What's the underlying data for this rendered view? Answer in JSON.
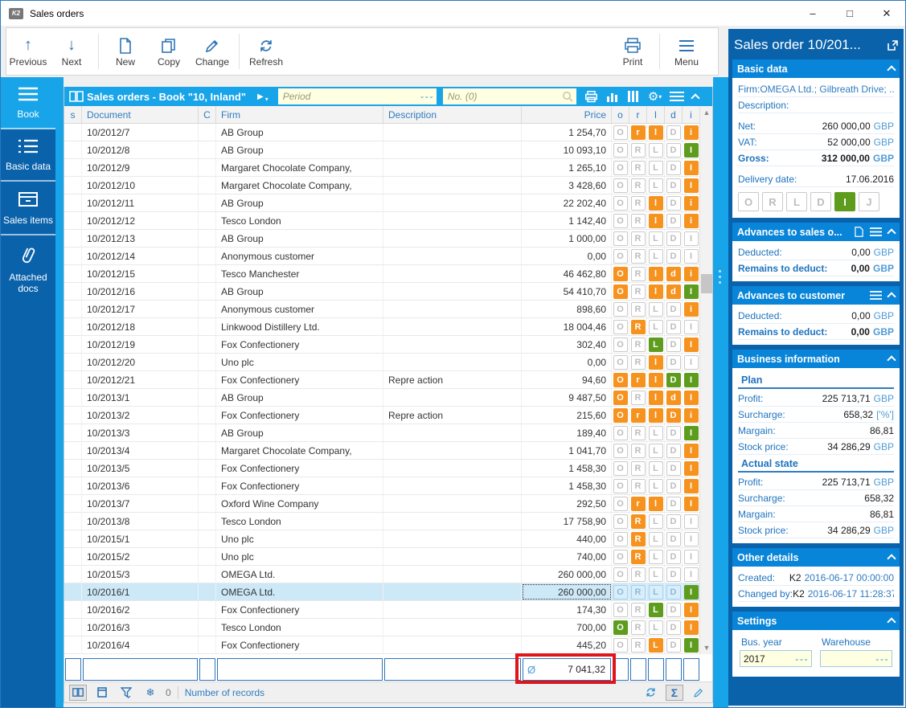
{
  "window": {
    "title": "Sales orders",
    "minimize": "–",
    "maximize": "□",
    "close": "✕"
  },
  "toolbar": {
    "left": [
      {
        "label": "Previous",
        "icon": "arrow-up"
      },
      {
        "label": "Next",
        "icon": "arrow-down"
      },
      {
        "label": "New",
        "icon": "new-document"
      },
      {
        "label": "Copy",
        "icon": "copy"
      },
      {
        "label": "Change",
        "icon": "pencil"
      },
      {
        "label": "Refresh",
        "icon": "refresh"
      }
    ],
    "groups_after": [
      1,
      4
    ],
    "right": [
      {
        "label": "Print",
        "icon": "printer"
      },
      {
        "label": "Menu",
        "icon": "hamburger"
      }
    ]
  },
  "sidebar": {
    "items": [
      {
        "label": "Book",
        "icon": "hamburger-icon",
        "active": true
      },
      {
        "label": "Basic data",
        "icon": "list-icon",
        "active": false
      },
      {
        "label": "Sales items",
        "icon": "box-icon",
        "active": false
      },
      {
        "label": "Attached docs",
        "icon": "paperclip-icon",
        "active": false
      }
    ]
  },
  "table": {
    "title": "Sales orders - Book \"10, Inland\"",
    "filters": {
      "period_placeholder": "Period",
      "no_placeholder": "No. (0)"
    },
    "columns": [
      "s",
      "Document",
      "C",
      "Firm",
      "Description",
      "Price",
      "o",
      "r",
      "l",
      "d",
      "i"
    ],
    "rows": [
      {
        "doc": "10/2012/7",
        "firm": "AB Group",
        "desc": "",
        "price": "1 254,70",
        "flags": [
          "O:g",
          "r:o",
          "l:o",
          "D:g",
          "i:o"
        ],
        "sel": false
      },
      {
        "doc": "10/2012/8",
        "firm": "AB Group",
        "desc": "",
        "price": "10 093,10",
        "flags": [
          "O:g",
          "R:g",
          "L:g",
          "D:g",
          "I:G"
        ],
        "sel": false
      },
      {
        "doc": "10/2012/9",
        "firm": "Margaret Chocolate Company,",
        "desc": "",
        "price": "1 265,10",
        "flags": [
          "O:g",
          "R:g",
          "L:g",
          "D:g",
          "I:o"
        ],
        "sel": false
      },
      {
        "doc": "10/2012/10",
        "firm": "Margaret Chocolate Company,",
        "desc": "",
        "price": "3 428,60",
        "flags": [
          "O:g",
          "R:g",
          "L:g",
          "D:g",
          "I:o"
        ],
        "sel": false
      },
      {
        "doc": "10/2012/11",
        "firm": "AB Group",
        "desc": "",
        "price": "22 202,40",
        "flags": [
          "O:g",
          "R:g",
          "l:o",
          "D:g",
          "i:o"
        ],
        "sel": false
      },
      {
        "doc": "10/2012/12",
        "firm": "Tesco London",
        "desc": "",
        "price": "1 142,40",
        "flags": [
          "O:g",
          "R:g",
          "l:o",
          "D:g",
          "i:o"
        ],
        "sel": false
      },
      {
        "doc": "10/2012/13",
        "firm": "AB Group",
        "desc": "",
        "price": "1 000,00",
        "flags": [
          "O:g",
          "R:g",
          "L:g",
          "D:g",
          "I:g"
        ],
        "sel": false
      },
      {
        "doc": "10/2012/14",
        "firm": "Anonymous customer",
        "desc": "",
        "price": "0,00",
        "flags": [
          "O:g",
          "R:g",
          "L:g",
          "D:g",
          "I:g"
        ],
        "sel": false
      },
      {
        "doc": "10/2012/15",
        "firm": "Tesco Manchester",
        "desc": "",
        "price": "46 462,80",
        "flags": [
          "O:o",
          "R:g",
          "l:o",
          "d:o",
          "i:o"
        ],
        "sel": false
      },
      {
        "doc": "10/2012/16",
        "firm": "AB Group",
        "desc": "",
        "price": "54 410,70",
        "flags": [
          "O:o",
          "R:g",
          "l:o",
          "d:o",
          "I:G"
        ],
        "sel": false
      },
      {
        "doc": "10/2012/17",
        "firm": "Anonymous customer",
        "desc": "",
        "price": "898,60",
        "flags": [
          "O:g",
          "R:g",
          "L:g",
          "D:g",
          "i:o"
        ],
        "sel": false
      },
      {
        "doc": "10/2012/18",
        "firm": "Linkwood Distillery Ltd.",
        "desc": "",
        "price": "18 004,46",
        "flags": [
          "O:g",
          "R:o",
          "L:g",
          "D:g",
          "I:g"
        ],
        "sel": false
      },
      {
        "doc": "10/2012/19",
        "firm": "Fox Confectionery",
        "desc": "",
        "price": "302,40",
        "flags": [
          "O:g",
          "R:g",
          "L:G",
          "D:g",
          "I:o"
        ],
        "sel": false
      },
      {
        "doc": "10/2012/20",
        "firm": "Uno plc",
        "desc": "",
        "price": "0,00",
        "flags": [
          "O:g",
          "R:g",
          "l:o",
          "D:g",
          "I:g"
        ],
        "sel": false
      },
      {
        "doc": "10/2012/21",
        "firm": "Fox Confectionery",
        "desc": "Repre action",
        "price": "94,60",
        "flags": [
          "O:o",
          "r:o",
          "l:o",
          "D:G",
          "I:G"
        ],
        "sel": false
      },
      {
        "doc": "10/2013/1",
        "firm": "AB Group",
        "desc": "",
        "price": "9 487,50",
        "flags": [
          "O:o",
          "R:g",
          "l:o",
          "d:o",
          "I:o"
        ],
        "sel": false
      },
      {
        "doc": "10/2013/2",
        "firm": "Fox Confectionery",
        "desc": "Repre action",
        "price": "215,60",
        "flags": [
          "O:o",
          "r:o",
          "l:o",
          "D:o",
          "i:o"
        ],
        "sel": false
      },
      {
        "doc": "10/2013/3",
        "firm": "AB Group",
        "desc": "",
        "price": "189,40",
        "flags": [
          "O:g",
          "R:g",
          "L:g",
          "D:g",
          "I:G"
        ],
        "sel": false
      },
      {
        "doc": "10/2013/4",
        "firm": "Margaret Chocolate Company,",
        "desc": "",
        "price": "1 041,70",
        "flags": [
          "O:g",
          "R:g",
          "L:g",
          "D:g",
          "I:o"
        ],
        "sel": false
      },
      {
        "doc": "10/2013/5",
        "firm": "Fox Confectionery",
        "desc": "",
        "price": "1 458,30",
        "flags": [
          "O:g",
          "R:g",
          "L:g",
          "D:g",
          "I:o"
        ],
        "sel": false
      },
      {
        "doc": "10/2013/6",
        "firm": "Fox Confectionery",
        "desc": "",
        "price": "1 458,30",
        "flags": [
          "O:g",
          "R:g",
          "L:g",
          "D:g",
          "I:o"
        ],
        "sel": false
      },
      {
        "doc": "10/2013/7",
        "firm": "Oxford Wine Company",
        "desc": "",
        "price": "292,50",
        "flags": [
          "O:g",
          "r:o",
          "l:o",
          "D:g",
          "I:o"
        ],
        "sel": false
      },
      {
        "doc": "10/2013/8",
        "firm": "Tesco London",
        "desc": "",
        "price": "17 758,90",
        "flags": [
          "O:g",
          "R:o",
          "L:g",
          "D:g",
          "I:g"
        ],
        "sel": false
      },
      {
        "doc": "10/2015/1",
        "firm": "Uno plc",
        "desc": "",
        "price": "440,00",
        "flags": [
          "O:g",
          "R:o",
          "L:g",
          "D:g",
          "I:g"
        ],
        "sel": false
      },
      {
        "doc": "10/2015/2",
        "firm": "Uno plc",
        "desc": "",
        "price": "740,00",
        "flags": [
          "O:g",
          "R:o",
          "L:g",
          "D:g",
          "I:g"
        ],
        "sel": false
      },
      {
        "doc": "10/2015/3",
        "firm": "OMEGA Ltd.",
        "desc": "",
        "price": "260 000,00",
        "flags": [
          "O:g",
          "R:g",
          "L:g",
          "D:g",
          "I:g"
        ],
        "sel": false
      },
      {
        "doc": "10/2016/1",
        "firm": "OMEGA Ltd.",
        "desc": "",
        "price": "260 000,00",
        "flags": [
          "O:s",
          "R:s",
          "L:s",
          "D:s",
          "I:G"
        ],
        "sel": true
      },
      {
        "doc": "10/2016/2",
        "firm": "Fox Confectionery",
        "desc": "",
        "price": "174,30",
        "flags": [
          "O:g",
          "R:g",
          "L:G",
          "D:g",
          "I:o"
        ],
        "sel": false
      },
      {
        "doc": "10/2016/3",
        "firm": "Tesco London",
        "desc": "",
        "price": "700,00",
        "flags": [
          "O:G",
          "R:g",
          "L:g",
          "D:g",
          "I:o"
        ],
        "sel": false
      },
      {
        "doc": "10/2016/4",
        "firm": "Fox Confectionery",
        "desc": "",
        "price": "445,20",
        "flags": [
          "O:g",
          "R:g",
          "L:o",
          "D:g",
          "I:G"
        ],
        "sel": false
      }
    ],
    "summary": {
      "avg_symbol": "Ø",
      "avg_value": "7 041,32"
    },
    "statusbar": {
      "counter": "0",
      "label": "Number of records"
    }
  },
  "panel": {
    "title": "Sales order 10/201...",
    "basic": {
      "title": "Basic data",
      "rows": [
        {
          "label": "Firm:",
          "value": "OMEGA Ltd.; Gilbreath Drive; ...",
          "navy": true
        },
        {
          "label": "Description:",
          "value": ""
        },
        {
          "label": "Net:",
          "value": "260 000,00",
          "suffix": "GBP"
        },
        {
          "label": "VAT:",
          "value": "52 000,00",
          "suffix": "GBP"
        },
        {
          "label": "Gross:",
          "value": "312 000,00",
          "suffix": "GBP",
          "bold": true
        },
        {
          "label": "Delivery date:",
          "value": "17.06.2016"
        }
      ],
      "flags": [
        "O:g",
        "R:g",
        "L:g",
        "D:g",
        "I:G",
        "J:g"
      ]
    },
    "advances_sales": {
      "title": "Advances to sales o...",
      "rows": [
        {
          "label": "Deducted:",
          "value": "0,00",
          "suffix": "GBP"
        },
        {
          "label": "Remains to deduct:",
          "value": "0,00",
          "suffix": "GBP",
          "bold": true
        }
      ]
    },
    "advances_customer": {
      "title": "Advances to customer",
      "rows": [
        {
          "label": "Deducted:",
          "value": "0,00",
          "suffix": "GBP"
        },
        {
          "label": "Remains to deduct:",
          "value": "0,00",
          "suffix": "GBP",
          "bold": true
        }
      ]
    },
    "business": {
      "title": "Business information",
      "groups": [
        {
          "heading": "Plan",
          "rows": [
            {
              "label": "Profit:",
              "value": "225 713,71",
              "suffix": "GBP"
            },
            {
              "label": "Surcharge:",
              "value": "658,32",
              "suffix": "['%']"
            },
            {
              "label": "Margain:",
              "value": "86,81"
            },
            {
              "label": "Stock price:",
              "value": "34 286,29",
              "suffix": "GBP"
            }
          ]
        },
        {
          "heading": "Actual state",
          "rows": [
            {
              "label": "Profit:",
              "value": "225 713,71",
              "suffix": "GBP"
            },
            {
              "label": "Surcharge:",
              "value": "658,32"
            },
            {
              "label": "Margain:",
              "value": "86,81"
            },
            {
              "label": "Stock price:",
              "value": "34 286,29",
              "suffix": "GBP"
            }
          ]
        }
      ]
    },
    "other": {
      "title": "Other details",
      "rows": [
        {
          "label": "Created:",
          "prefix": "K2",
          "date": "2016-06-17 00:00:00"
        },
        {
          "label": "Changed by:",
          "prefix": "K2",
          "date": "2016-06-17 11:28:37"
        }
      ]
    },
    "settings": {
      "title": "Settings",
      "fields": [
        {
          "label": "Bus. year",
          "value": "2017"
        },
        {
          "label": "Warehouse",
          "value": ""
        }
      ]
    }
  },
  "colors": {
    "accent_bright": "#18A4E8",
    "accent_dark": "#0A62AB",
    "section_header": "#0884D8",
    "flag_orange": "#F6921E",
    "flag_green": "#5E9C1E",
    "annotation_red": "#E0151B",
    "filter_yellow": "#FFFFE1"
  }
}
